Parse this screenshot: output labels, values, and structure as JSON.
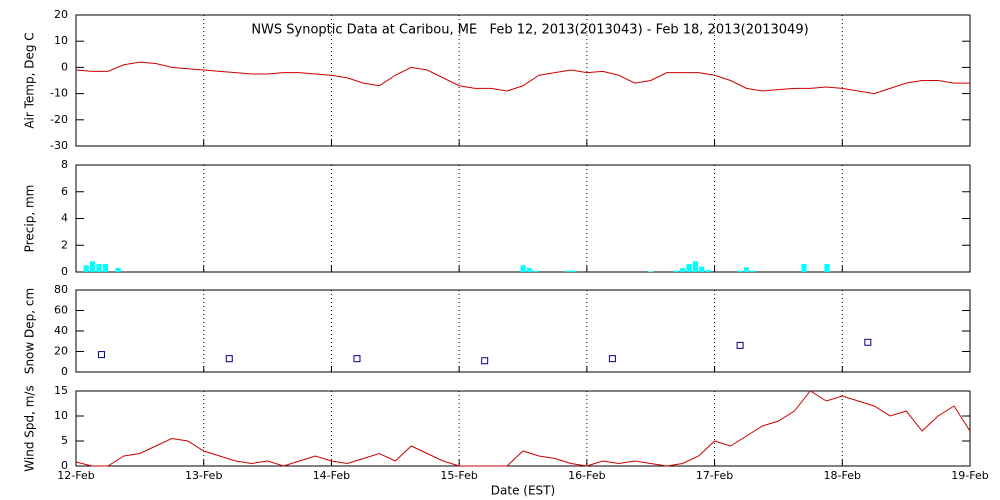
{
  "chart_data": [
    {
      "type": "line",
      "title": "NWS Synoptic Data at Caribou, ME   Feb 12, 2013(2013043) - Feb 18, 2013(2013049)",
      "ylabel": "Air Temp, Deg C",
      "color": "#cc0000",
      "x": [
        0,
        0.125,
        0.25,
        0.375,
        0.5,
        0.625,
        0.75,
        0.875,
        1,
        1.125,
        1.25,
        1.375,
        1.5,
        1.625,
        1.75,
        1.875,
        2,
        2.125,
        2.25,
        2.375,
        2.5,
        2.625,
        2.75,
        2.875,
        3,
        3.125,
        3.25,
        3.375,
        3.5,
        3.625,
        3.75,
        3.875,
        4,
        4.125,
        4.25,
        4.375,
        4.5,
        4.625,
        4.75,
        4.875,
        5,
        5.125,
        5.25,
        5.375,
        5.5,
        5.625,
        5.75,
        5.875,
        6,
        6.125,
        6.25,
        6.375,
        6.5,
        6.625,
        6.75,
        6.875,
        7
      ],
      "values": [
        -1,
        -1.5,
        -1.5,
        1,
        2,
        1.5,
        0,
        -0.5,
        -1,
        -1.5,
        -2,
        -2.5,
        -2.5,
        -2,
        -2,
        -2.5,
        -3,
        -4,
        -6,
        -7,
        -3,
        0,
        -1,
        -4,
        -7,
        -8,
        -8,
        -9,
        -7,
        -3,
        -2,
        -1,
        -2,
        -1.5,
        -3,
        -6,
        -5,
        -2,
        -2,
        -2,
        -3,
        -5,
        -8,
        -9,
        -8.5,
        -8,
        -8,
        -7.5,
        -8,
        -9,
        -10,
        -8,
        -6,
        -5,
        -5,
        -6,
        -6
      ],
      "xlim": [
        0,
        7
      ],
      "xticks": [
        0,
        1,
        2,
        3,
        4,
        5,
        6,
        7
      ],
      "ylim": [
        -30,
        20
      ],
      "yticks": [
        -30,
        -20,
        -10,
        0,
        10,
        20
      ]
    },
    {
      "type": "bar",
      "ylabel": "Precip, mm",
      "color": "#00ffff",
      "x": [
        0.08,
        0.13,
        0.18,
        0.23,
        0.33,
        3.5,
        3.55,
        3.6,
        3.85,
        3.9,
        4.5,
        4.7,
        4.75,
        4.8,
        4.85,
        4.9,
        4.95,
        5.2,
        5.25,
        5.3,
        5.7,
        5.88
      ],
      "values": [
        0.5,
        0.8,
        0.6,
        0.6,
        0.3,
        0.5,
        0.3,
        0.1,
        0.1,
        0.1,
        0.05,
        0.1,
        0.3,
        0.6,
        0.8,
        0.4,
        0.15,
        0.1,
        0.35,
        0.1,
        0.6,
        0.6
      ],
      "xlim": [
        0,
        7
      ],
      "xticks": [
        0,
        1,
        2,
        3,
        4,
        5,
        6,
        7
      ],
      "ylim": [
        0,
        8
      ],
      "yticks": [
        0,
        2,
        4,
        6,
        8
      ]
    },
    {
      "type": "scatter",
      "ylabel": "Snow Dep, cm",
      "color": "#000080",
      "x": [
        0.2,
        1.2,
        2.2,
        3.2,
        4.2,
        5.2,
        6.2
      ],
      "values": [
        17,
        13,
        13,
        11,
        13,
        26,
        29
      ],
      "xlim": [
        0,
        7
      ],
      "xticks": [
        0,
        1,
        2,
        3,
        4,
        5,
        6,
        7
      ],
      "ylim": [
        0,
        80
      ],
      "yticks": [
        0,
        20,
        40,
        60,
        80
      ]
    },
    {
      "type": "line",
      "ylabel": "Wind Spd, m/s",
      "xlabel": "Date (EST)",
      "color": "#cc0000",
      "x": [
        0,
        0.125,
        0.25,
        0.375,
        0.5,
        0.625,
        0.75,
        0.875,
        1,
        1.125,
        1.25,
        1.375,
        1.5,
        1.625,
        1.75,
        1.875,
        2,
        2.125,
        2.25,
        2.375,
        2.5,
        2.625,
        2.75,
        2.875,
        3,
        3.125,
        3.25,
        3.375,
        3.5,
        3.625,
        3.75,
        3.875,
        4,
        4.125,
        4.25,
        4.375,
        4.5,
        4.625,
        4.75,
        4.875,
        5,
        5.125,
        5.25,
        5.375,
        5.5,
        5.625,
        5.75,
        5.875,
        6,
        6.125,
        6.25,
        6.375,
        6.5,
        6.625,
        6.75,
        6.875,
        7
      ],
      "values": [
        0.8,
        0,
        0,
        2,
        2.5,
        4,
        5.5,
        5,
        3,
        2,
        1,
        0.5,
        1,
        0,
        1,
        2,
        1,
        0.5,
        1.5,
        2.5,
        1,
        4,
        2.5,
        1,
        0,
        0,
        0,
        0,
        3,
        2,
        1.5,
        0.5,
        0,
        1,
        0.5,
        1,
        0.5,
        0,
        0.5,
        2,
        5,
        4,
        6,
        8,
        9,
        11,
        15,
        13,
        14,
        13,
        12,
        10,
        11,
        7,
        10,
        12,
        7
      ],
      "xlim": [
        0,
        7
      ],
      "xticks": [
        {
          "value": 0,
          "label": "12-Feb"
        },
        {
          "value": 1,
          "label": "13-Feb"
        },
        {
          "value": 2,
          "label": "14-Feb"
        },
        {
          "value": 3,
          "label": "15-Feb"
        },
        {
          "value": 4,
          "label": "16-Feb"
        },
        {
          "value": 5,
          "label": "17-Feb"
        },
        {
          "value": 6,
          "label": "18-Feb"
        },
        {
          "value": 7,
          "label": "19-Feb"
        }
      ],
      "ylim": [
        0,
        15
      ],
      "yticks": [
        0,
        5,
        10,
        15
      ]
    }
  ]
}
